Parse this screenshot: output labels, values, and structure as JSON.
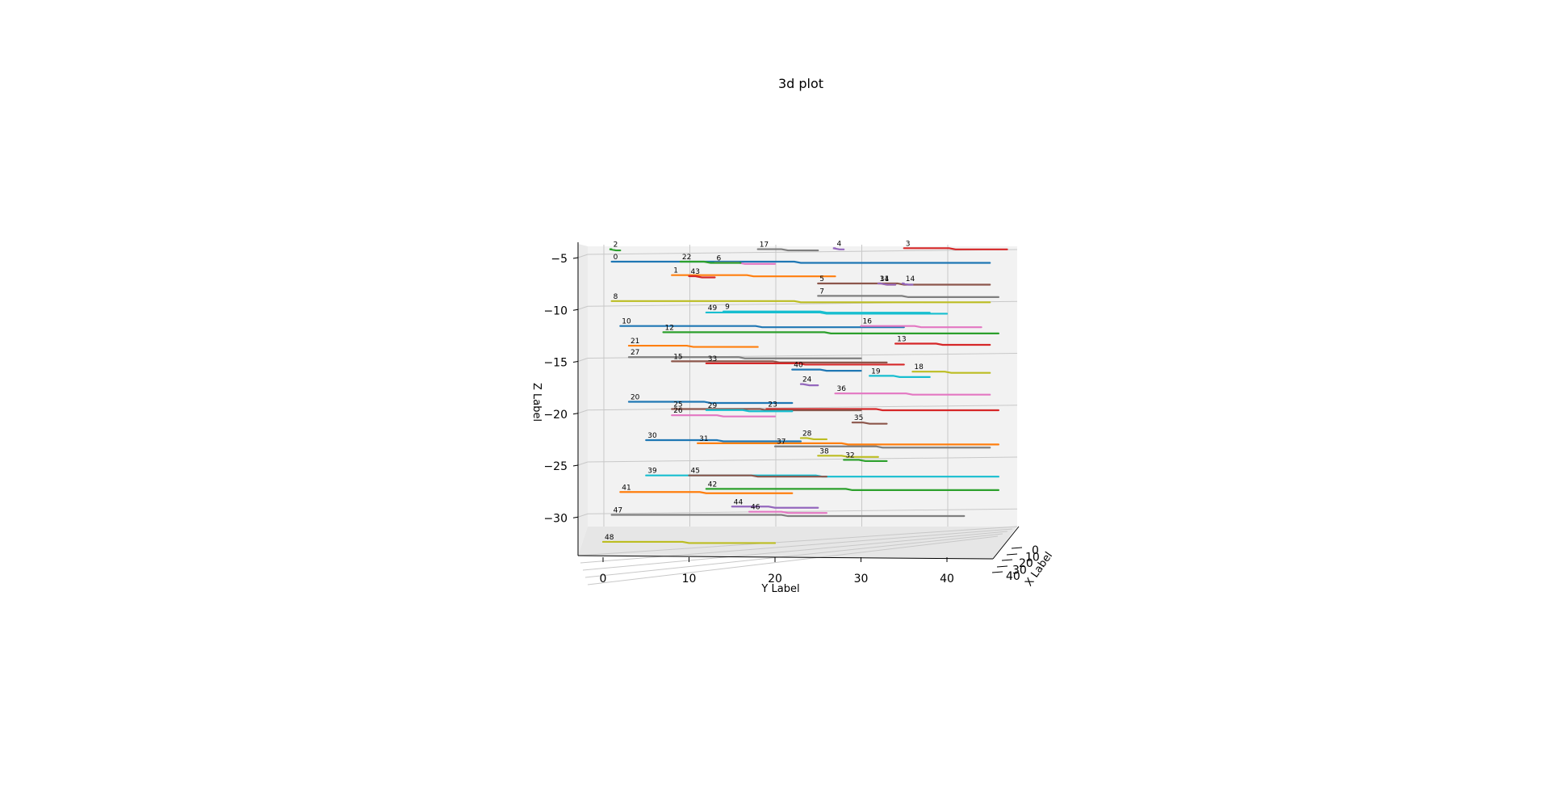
{
  "figure": {
    "title": "3d plot"
  },
  "chart_data": {
    "type": "line",
    "projection": "3d",
    "title": "3d plot",
    "xlabel": "X Label",
    "ylabel": "Y Label",
    "zlabel": "Z Label",
    "ylim": [
      -2,
      46
    ],
    "zlim": [
      -35,
      -5
    ],
    "x_ticks": [
      "0",
      "10",
      "20",
      "30",
      "40"
    ],
    "y_ticks": [
      "0",
      "10",
      "20",
      "30",
      "40"
    ],
    "z_ticks": [
      "−5",
      "−10",
      "−15",
      "−20",
      "−25",
      "−30"
    ],
    "grid": true,
    "z_level_step": 4.5,
    "colors": [
      "#1f77b4",
      "#ff7f0e",
      "#2ca02c",
      "#d62728",
      "#9467bd",
      "#8c564b",
      "#e377c2",
      "#7f7f7f",
      "#bcbd22",
      "#17becf"
    ],
    "series": [
      {
        "label": "0",
        "z": -5.7,
        "y_start": 1,
        "y_end": 45
      },
      {
        "label": "1",
        "z": -7.0,
        "y_start": 8,
        "y_end": 27
      },
      {
        "label": "2",
        "z": -4.5,
        "y_start": 1,
        "y_end": 2
      },
      {
        "label": "3",
        "z": -4.4,
        "y_start": 35,
        "y_end": 47
      },
      {
        "label": "4",
        "z": -4.4,
        "y_start": 27,
        "y_end": 28
      },
      {
        "label": "5",
        "z": -7.8,
        "y_start": 25,
        "y_end": 45
      },
      {
        "label": "6",
        "z": -5.8,
        "y_start": 13,
        "y_end": 20
      },
      {
        "label": "7",
        "z": -9.0,
        "y_start": 25,
        "y_end": 46
      },
      {
        "label": "8",
        "z": -9.5,
        "y_start": 1,
        "y_end": 45
      },
      {
        "label": "9",
        "z": -10.5,
        "y_start": 14,
        "y_end": 38
      },
      {
        "label": "10",
        "z": -11.9,
        "y_start": 2,
        "y_end": 35
      },
      {
        "label": "11",
        "z": -7.8,
        "y_start": 32,
        "y_end": 34
      },
      {
        "label": "12",
        "z": -12.5,
        "y_start": 7,
        "y_end": 46
      },
      {
        "label": "13",
        "z": -13.6,
        "y_start": 34,
        "y_end": 45
      },
      {
        "label": "14",
        "z": -7.8,
        "y_start": 35,
        "y_end": 36
      },
      {
        "label": "15",
        "z": -15.3,
        "y_start": 8,
        "y_end": 33
      },
      {
        "label": "16",
        "z": -11.9,
        "y_start": 30,
        "y_end": 44
      },
      {
        "label": "17",
        "z": -4.5,
        "y_start": 18,
        "y_end": 25
      },
      {
        "label": "18",
        "z": -16.3,
        "y_start": 36,
        "y_end": 45
      },
      {
        "label": "19",
        "z": -16.7,
        "y_start": 31,
        "y_end": 38
      },
      {
        "label": "20",
        "z": -19.2,
        "y_start": 3,
        "y_end": 22
      },
      {
        "label": "21",
        "z": -13.8,
        "y_start": 3,
        "y_end": 18
      },
      {
        "label": "22",
        "z": -5.7,
        "y_start": 9,
        "y_end": 16
      },
      {
        "label": "23",
        "z": -19.9,
        "y_start": 19,
        "y_end": 46
      },
      {
        "label": "24",
        "z": -17.5,
        "y_start": 23,
        "y_end": 25
      },
      {
        "label": "25",
        "z": -19.9,
        "y_start": 8,
        "y_end": 30
      },
      {
        "label": "26",
        "z": -20.5,
        "y_start": 8,
        "y_end": 20
      },
      {
        "label": "27",
        "z": -14.9,
        "y_start": 3,
        "y_end": 30
      },
      {
        "label": "28",
        "z": -22.7,
        "y_start": 23,
        "y_end": 26
      },
      {
        "label": "29",
        "z": -20.0,
        "y_start": 12,
        "y_end": 22
      },
      {
        "label": "30",
        "z": -22.9,
        "y_start": 5,
        "y_end": 23
      },
      {
        "label": "31",
        "z": -23.2,
        "y_start": 11,
        "y_end": 46
      },
      {
        "label": "32",
        "z": -24.8,
        "y_start": 28,
        "y_end": 33
      },
      {
        "label": "33",
        "z": -15.5,
        "y_start": 12,
        "y_end": 35
      },
      {
        "label": "34",
        "z": -7.8,
        "y_start": 32,
        "y_end": 34
      },
      {
        "label": "35",
        "z": -21.2,
        "y_start": 29,
        "y_end": 33
      },
      {
        "label": "36",
        "z": -18.4,
        "y_start": 27,
        "y_end": 45
      },
      {
        "label": "37",
        "z": -23.5,
        "y_start": 20,
        "y_end": 45
      },
      {
        "label": "38",
        "z": -24.4,
        "y_start": 25,
        "y_end": 32
      },
      {
        "label": "39",
        "z": -26.3,
        "y_start": 5,
        "y_end": 46
      },
      {
        "label": "40",
        "z": -16.1,
        "y_start": 22,
        "y_end": 30
      },
      {
        "label": "41",
        "z": -27.9,
        "y_start": 2,
        "y_end": 22
      },
      {
        "label": "42",
        "z": -27.6,
        "y_start": 12,
        "y_end": 46
      },
      {
        "label": "43",
        "z": -7.1,
        "y_start": 10,
        "y_end": 13
      },
      {
        "label": "44",
        "z": -29.3,
        "y_start": 15,
        "y_end": 25
      },
      {
        "label": "45",
        "z": -26.3,
        "y_start": 10,
        "y_end": 26
      },
      {
        "label": "46",
        "z": -29.8,
        "y_start": 17,
        "y_end": 26
      },
      {
        "label": "47",
        "z": -30.1,
        "y_start": 1,
        "y_end": 42
      },
      {
        "label": "48",
        "z": -32.7,
        "y_start": 0,
        "y_end": 20
      },
      {
        "label": "49",
        "z": -10.6,
        "y_start": 12,
        "y_end": 40
      }
    ]
  }
}
